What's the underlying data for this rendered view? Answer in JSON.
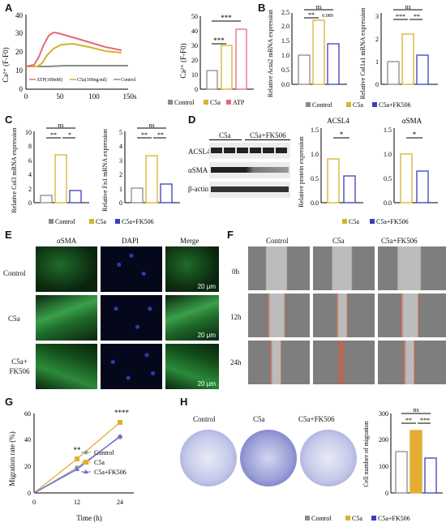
{
  "panels": {
    "A": "A",
    "B": "B",
    "C": "C",
    "D": "D",
    "E": "E",
    "F": "F",
    "G": "G",
    "H": "H"
  },
  "panelA": {
    "trace": {
      "ylabel": "Ca²⁺ (F-F0)",
      "yticks": [
        "0",
        "10",
        "20",
        "30",
        "40"
      ],
      "xticks": [
        "0",
        "50",
        "100",
        "150s"
      ],
      "legend": [
        "ATP(100nM)",
        "C5a(100ng/ml)",
        "Control"
      ],
      "colors": [
        "#e36a7a",
        "#d8b12f",
        "#8a8a8a"
      ]
    },
    "bar": {
      "ylabel": "Ca²⁺ (F-F0)",
      "yticks": [
        "0",
        "10",
        "20",
        "30",
        "40",
        "50"
      ],
      "categories": [
        "Control",
        "C5a",
        "ATP"
      ],
      "values": [
        13,
        30,
        41
      ],
      "sig": [
        "***",
        "***"
      ],
      "legend": [
        "Control",
        "C5a",
        "ATP"
      ]
    }
  },
  "panelB": {
    "charts": [
      {
        "ylabel": "Relative Acta2 mRNA expression",
        "yticks": [
          "0.0",
          "0.5",
          "1.0",
          "1.5",
          "2.0",
          "2.5"
        ],
        "values": [
          1.0,
          2.2,
          1.4
        ],
        "sig": [
          "ns",
          "**",
          "0.089"
        ]
      },
      {
        "ylabel": "Relative Col1a1 mRNA expression",
        "yticks": [
          "0",
          "1",
          "2",
          "3"
        ],
        "values": [
          1.0,
          2.2,
          1.3
        ],
        "sig": [
          "ns",
          "***",
          "**"
        ]
      }
    ],
    "legend": [
      "Control",
      "C5a",
      "C5a+FK506"
    ]
  },
  "panelC": {
    "charts": [
      {
        "ylabel": "Relative Col3 mRNA expression",
        "yticks": [
          "0",
          "2",
          "4",
          "6",
          "8",
          "10"
        ],
        "values": [
          1.0,
          6.7,
          1.7
        ],
        "sig": [
          "ns",
          "**",
          "*"
        ]
      },
      {
        "ylabel": "Relative Fn1 mRNA expression",
        "yticks": [
          "0",
          "1",
          "2",
          "3",
          "4",
          "5"
        ],
        "values": [
          1.0,
          3.3,
          1.3
        ],
        "sig": [
          "ns",
          "**",
          "**"
        ]
      }
    ],
    "legend": [
      "Control",
      "C5a",
      "C5a+FK506"
    ]
  },
  "panelD": {
    "blot_header": [
      "C5a",
      "C5a+FK506"
    ],
    "blot_rows": [
      "ACSL4",
      "αSMA",
      "β-actin"
    ],
    "charts": [
      {
        "title": "ACSL4",
        "ylabel": "Relative protein expression",
        "yticks": [
          "0.0",
          "0.5",
          "1.0",
          "1.5"
        ],
        "values": [
          0.9,
          0.55
        ],
        "sig": "*"
      },
      {
        "title": "αSMA",
        "ylabel": "",
        "yticks": [
          "0.0",
          "0.5",
          "1.0",
          "1.5"
        ],
        "values": [
          1.0,
          0.65
        ],
        "sig": "*"
      }
    ],
    "legend": [
      "C5a",
      "C5a+FK506"
    ]
  },
  "panelE": {
    "columns": [
      "αSMA",
      "DAPI",
      "Merge"
    ],
    "rows": [
      "Control",
      "C5a",
      "C5a+ FK506"
    ],
    "scale": "20 μm"
  },
  "panelF": {
    "columns": [
      "Control",
      "C5a",
      "C5a+FK506"
    ],
    "rows": [
      "0h",
      "12h",
      "24h"
    ]
  },
  "panelG": {
    "ylabel": "Migration rate (%)",
    "xlabel": "Time (h)",
    "yticks": [
      "0",
      "20",
      "40",
      "60"
    ],
    "xticks": [
      "0",
      "12",
      "24"
    ],
    "sig": [
      "**",
      "****"
    ],
    "legend": [
      "Control",
      "C5a",
      "C5a+FK506"
    ]
  },
  "panelH": {
    "columns": [
      "Control",
      "C5a",
      "C5a+FK506"
    ],
    "bar": {
      "ylabel": "Cell number of migration",
      "yticks": [
        "0",
        "100",
        "200",
        "300"
      ],
      "values": [
        155,
        235,
        130
      ],
      "sig": [
        "ns",
        "**",
        "***"
      ]
    },
    "legend": [
      "Control",
      "C5a",
      "C5a+FK506"
    ]
  },
  "chart_data": [
    {
      "type": "line",
      "title": "",
      "xlabel": "",
      "ylabel": "Ca²⁺ (F-F0)",
      "x": [
        0,
        10,
        20,
        30,
        40,
        50,
        60,
        80,
        100,
        120
      ],
      "series": [
        {
          "name": "ATP(100nM)",
          "values": [
            12,
            12,
            14,
            28,
            36,
            34,
            32,
            28,
            25,
            21
          ]
        },
        {
          "name": "C5a(100ng/ml)",
          "values": [
            12,
            12,
            12,
            18,
            24,
            27,
            27,
            25,
            23,
            21
          ]
        },
        {
          "name": "Control",
          "values": [
            12,
            12,
            12,
            13,
            13,
            13,
            13,
            13,
            13,
            13
          ]
        }
      ],
      "xlim": [
        0,
        150
      ],
      "ylim": [
        0,
        40
      ]
    },
    {
      "type": "bar",
      "categories": [
        "Control",
        "C5a",
        "ATP"
      ],
      "values": [
        13,
        30,
        41
      ],
      "ylabel": "Ca²⁺ (F-F0)",
      "ylim": [
        0,
        50
      ]
    },
    {
      "type": "bar",
      "categories": [
        "Control",
        "C5a",
        "C5a+FK506"
      ],
      "values": [
        1.0,
        2.2,
        1.4
      ],
      "ylabel": "Relative Acta2 mRNA expression",
      "ylim": [
        0,
        2.5
      ]
    },
    {
      "type": "bar",
      "categories": [
        "Control",
        "C5a",
        "C5a+FK506"
      ],
      "values": [
        1.0,
        2.2,
        1.3
      ],
      "ylabel": "Relative Col1a1 mRNA expression",
      "ylim": [
        0,
        3
      ]
    },
    {
      "type": "bar",
      "categories": [
        "Control",
        "C5a",
        "C5a+FK506"
      ],
      "values": [
        1.0,
        6.7,
        1.7
      ],
      "ylabel": "Relative Col3 mRNA expression",
      "ylim": [
        0,
        10
      ]
    },
    {
      "type": "bar",
      "categories": [
        "Control",
        "C5a",
        "C5a+FK506"
      ],
      "values": [
        1.0,
        3.3,
        1.3
      ],
      "ylabel": "Relative Fn1 mRNA expression",
      "ylim": [
        0,
        5
      ]
    },
    {
      "type": "bar",
      "title": "ACSL4",
      "categories": [
        "C5a",
        "C5a+FK506"
      ],
      "values": [
        0.9,
        0.55
      ],
      "ylabel": "Relative protein expression",
      "ylim": [
        0,
        1.5
      ]
    },
    {
      "type": "bar",
      "title": "αSMA",
      "categories": [
        "C5a",
        "C5a+FK506"
      ],
      "values": [
        1.0,
        0.65
      ],
      "ylim": [
        0,
        1.5
      ]
    },
    {
      "type": "line",
      "xlabel": "Time (h)",
      "ylabel": "Migration rate (%)",
      "x": [
        0,
        12,
        24
      ],
      "series": [
        {
          "name": "Control",
          "values": [
            0,
            19,
            42
          ]
        },
        {
          "name": "C5a",
          "values": [
            0,
            26,
            53
          ]
        },
        {
          "name": "C5a+FK506",
          "values": [
            0,
            18,
            43
          ]
        }
      ],
      "ylim": [
        0,
        60
      ]
    },
    {
      "type": "bar",
      "categories": [
        "Control",
        "C5a",
        "C5a+FK506"
      ],
      "values": [
        155,
        235,
        130
      ],
      "ylabel": "Cell number of migration",
      "ylim": [
        0,
        300
      ]
    }
  ]
}
